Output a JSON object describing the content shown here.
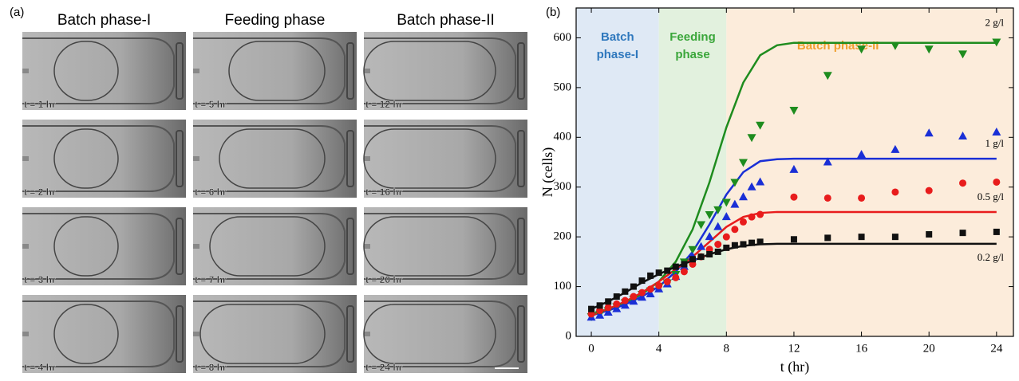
{
  "panel_a": {
    "label": "(a)",
    "columns": [
      {
        "title": "Batch phase-I",
        "labels": [
          "t = 1 hr",
          "t = 2 hr",
          "t = 3 hr",
          "t = 4 hr"
        ]
      },
      {
        "title": "Feeding phase",
        "labels": [
          "t = 5 hr",
          "t = 6 hr",
          "t = 7 hr",
          "t = 8 hr"
        ]
      },
      {
        "title": "Batch phase-II",
        "labels": [
          "t = 12 hr",
          "t = 16 hr",
          "t = 20 hr",
          "t = 24 hr"
        ]
      }
    ]
  },
  "chart_data": {
    "type": "scatter",
    "panel_label": "(b)",
    "xlabel": "t (hr)",
    "ylabel": "N (cells)",
    "xlim": [
      -0.9,
      25
    ],
    "ylim": [
      0,
      660
    ],
    "xticks": [
      0,
      4,
      8,
      12,
      16,
      20,
      24
    ],
    "yticks": [
      0,
      100,
      200,
      300,
      400,
      500,
      600
    ],
    "regions": [
      {
        "lines": [
          "Batch",
          "phase-I"
        ],
        "from": -0.9,
        "to": 4,
        "color": "#dfe9f5",
        "text_color": "#2f78bd"
      },
      {
        "lines": [
          "Feeding",
          "phase"
        ],
        "from": 4,
        "to": 8,
        "color": "#e2f1de",
        "text_color": "#3aa63a"
      },
      {
        "lines": [
          "Batch phase-II"
        ],
        "from": 8,
        "to": 25,
        "color": "#fcecdb",
        "text_color": "#f0a030"
      }
    ],
    "x": [
      0,
      0.5,
      1,
      1.5,
      2,
      2.5,
      3,
      3.5,
      4,
      4.5,
      5,
      5.5,
      6,
      6.5,
      7,
      7.5,
      8,
      8.5,
      9,
      9.5,
      10,
      12,
      14,
      16,
      18,
      20,
      22,
      24
    ],
    "fit_x": [
      0,
      1,
      2,
      3,
      4,
      5,
      6,
      7,
      8,
      9,
      10,
      11,
      12,
      24
    ],
    "series": [
      {
        "name": "2 g/l",
        "color": "#1e8c1e",
        "marker": "tri-down",
        "values": [
          40,
          45,
          52,
          60,
          68,
          75,
          85,
          92,
          100,
          108,
          125,
          150,
          175,
          225,
          245,
          255,
          270,
          310,
          350,
          400,
          425,
          455,
          525,
          578,
          585,
          578,
          568,
          592
        ],
        "fit": [
          45,
          55,
          68,
          85,
          110,
          150,
          215,
          310,
          420,
          510,
          565,
          585,
          590,
          590
        ]
      },
      {
        "name": "1 g/l",
        "color": "#1a2fd6",
        "marker": "tri-up",
        "values": [
          38,
          42,
          48,
          55,
          62,
          70,
          78,
          85,
          95,
          105,
          120,
          140,
          160,
          180,
          200,
          220,
          240,
          265,
          280,
          300,
          310,
          335,
          350,
          365,
          375,
          408,
          402,
          410
        ],
        "fit": [
          42,
          52,
          64,
          80,
          100,
          130,
          170,
          225,
          285,
          330,
          352,
          356,
          357,
          357
        ]
      },
      {
        "name": "0.5 g/l",
        "color": "#e81c1c",
        "marker": "circle",
        "values": [
          45,
          52,
          58,
          65,
          72,
          80,
          88,
          95,
          102,
          110,
          118,
          130,
          145,
          160,
          175,
          185,
          200,
          215,
          230,
          240,
          245,
          280,
          278,
          278,
          290,
          293,
          308,
          310
        ],
        "fit": [
          42,
          55,
          70,
          88,
          110,
          135,
          160,
          190,
          220,
          240,
          248,
          250,
          250,
          250
        ]
      },
      {
        "name": "0.2 g/l",
        "color": "#111111",
        "marker": "square",
        "values": [
          55,
          62,
          70,
          80,
          90,
          100,
          112,
          122,
          128,
          132,
          140,
          145,
          155,
          160,
          165,
          170,
          178,
          183,
          185,
          188,
          190,
          195,
          198,
          200,
          200,
          205,
          208,
          210
        ],
        "fit": [
          55,
          70,
          88,
          108,
          125,
          140,
          152,
          165,
          175,
          182,
          185,
          186,
          186,
          186
        ]
      }
    ]
  }
}
